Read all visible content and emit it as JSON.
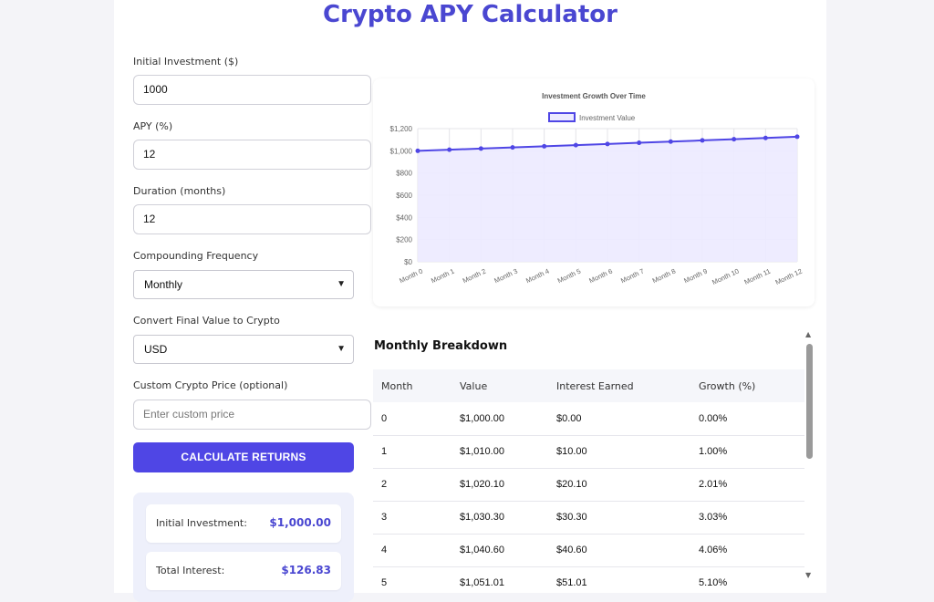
{
  "title": "Crypto APY Calculator",
  "form": {
    "initial_label": "Initial Investment ($)",
    "initial_value": "1000",
    "apy_label": "APY (%)",
    "apy_value": "12",
    "duration_label": "Duration (months)",
    "duration_value": "12",
    "frequency_label": "Compounding Frequency",
    "frequency_value": "Monthly",
    "convert_label": "Convert Final Value to Crypto",
    "convert_value": "USD",
    "custom_label": "Custom Crypto Price (optional)",
    "custom_placeholder": "Enter custom price",
    "calculate_label": "CALCULATE RETURNS"
  },
  "summary": [
    {
      "key": "Initial Investment:",
      "value": "$1,000.00"
    },
    {
      "key": "Total Interest:",
      "value": "$126.83"
    }
  ],
  "chart_data": {
    "type": "line",
    "title": "Investment Growth Over Time",
    "series": [
      {
        "name": "Investment Value",
        "values": [
          1000.0,
          1010.0,
          1020.1,
          1030.3,
          1040.6,
          1051.01,
          1061.52,
          1072.14,
          1082.86,
          1093.69,
          1104.62,
          1115.67,
          1126.83
        ]
      }
    ],
    "categories": [
      "Month 0",
      "Month 1",
      "Month 2",
      "Month 3",
      "Month 4",
      "Month 5",
      "Month 6",
      "Month 7",
      "Month 8",
      "Month 9",
      "Month 10",
      "Month 11",
      "Month 12"
    ],
    "yticks": [
      "$0",
      "$200",
      "$400",
      "$600",
      "$800",
      "$1,000",
      "$1,200"
    ],
    "ylim": [
      0,
      1200
    ],
    "grid": true,
    "legend": "top",
    "color": "#4f46e5",
    "fill": "#eceaff"
  },
  "breakdown": {
    "heading": "Monthly Breakdown",
    "columns": [
      "Month",
      "Value",
      "Interest Earned",
      "Growth (%)"
    ],
    "rows": [
      [
        "0",
        "$1,000.00",
        "$0.00",
        "0.00%"
      ],
      [
        "1",
        "$1,010.00",
        "$10.00",
        "1.00%"
      ],
      [
        "2",
        "$1,020.10",
        "$20.10",
        "2.01%"
      ],
      [
        "3",
        "$1,030.30",
        "$30.30",
        "3.03%"
      ],
      [
        "4",
        "$1,040.60",
        "$40.60",
        "4.06%"
      ],
      [
        "5",
        "$1,051.01",
        "$51.01",
        "5.10%"
      ]
    ]
  },
  "colors": {
    "accent": "#4f46e5",
    "title": "#4a47d1"
  }
}
